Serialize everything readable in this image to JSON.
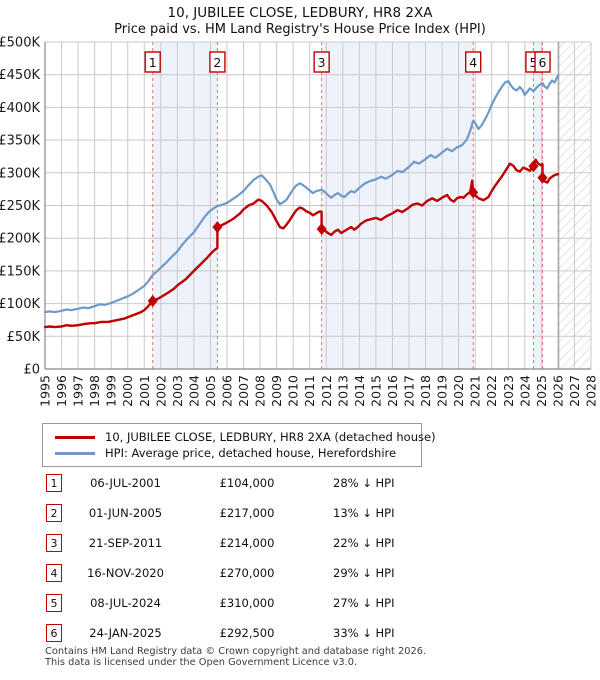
{
  "title": "10, JUBILEE CLOSE, LEDBURY, HR8 2XA",
  "subtitle": "Price paid vs. HM Land Registry's House Price Index (HPI)",
  "colors": {
    "price_line": "#c00000",
    "hpi_line": "#6e99c9",
    "sale_dashed_line": "#ee6f6f",
    "band_fill": "#eef2fa",
    "grid": "#c9c9c9",
    "axis": "#888888",
    "hatch": "#c9c9c9",
    "marker_box_border": "#c00000",
    "text": "#1a1a1a"
  },
  "chart_data": {
    "type": "line",
    "title": "10, JUBILEE CLOSE, LEDBURY, HR8 2XA — Price paid vs. HPI",
    "x_range": [
      1995,
      2028
    ],
    "y_range_pounds": [
      0,
      500000
    ],
    "x_ticks": [
      1995,
      1996,
      1997,
      1998,
      1999,
      2000,
      2001,
      2002,
      2003,
      2004,
      2005,
      2006,
      2007,
      2008,
      2009,
      2010,
      2011,
      2012,
      2013,
      2014,
      2015,
      2016,
      2017,
      2018,
      2019,
      2020,
      2021,
      2022,
      2023,
      2024,
      2025,
      2026,
      2027,
      2028
    ],
    "y_ticks_k": [
      0,
      50,
      100,
      150,
      200,
      250,
      300,
      350,
      400,
      450,
      500
    ],
    "y_tick_labels": [
      "£0",
      "£50K",
      "£100K",
      "£150K",
      "£200K",
      "£250K",
      "£300K",
      "£350K",
      "£400K",
      "£450K",
      "£500K"
    ],
    "grid": true,
    "legend_position": "below",
    "future_start": 2026.05,
    "bands": [
      [
        2001.51,
        2005.42
      ],
      [
        2011.72,
        2020.88
      ],
      [
        2024.52,
        2025.07
      ]
    ],
    "sales_markers": [
      {
        "n": "1",
        "x": 2001.51,
        "y_k": 104
      },
      {
        "n": "2",
        "x": 2005.42,
        "y_k": 217
      },
      {
        "n": "3",
        "x": 2011.72,
        "y_k": 214
      },
      {
        "n": "4",
        "x": 2020.88,
        "y_k": 270
      },
      {
        "n": "5",
        "x": 2024.52,
        "y_k": 310
      },
      {
        "n": "6",
        "x": 2025.07,
        "y_k": 292.5
      }
    ],
    "series": [
      {
        "name": "hpi",
        "label": "HPI: Average price, detached house, Herefordshire",
        "color": "#6e99c9",
        "width": 2.2,
        "points": [
          [
            1995,
            87
          ],
          [
            1995.3,
            88
          ],
          [
            1995.6,
            87
          ],
          [
            1996,
            89
          ],
          [
            1996.3,
            91
          ],
          [
            1996.6,
            90
          ],
          [
            1997,
            92
          ],
          [
            1997.3,
            94
          ],
          [
            1997.6,
            93
          ],
          [
            1998,
            96
          ],
          [
            1998.3,
            99
          ],
          [
            1998.6,
            98
          ],
          [
            1999,
            101
          ],
          [
            1999.3,
            104
          ],
          [
            1999.6,
            107
          ],
          [
            2000,
            111
          ],
          [
            2000.3,
            115
          ],
          [
            2000.6,
            120
          ],
          [
            2001,
            127
          ],
          [
            2001.3,
            136
          ],
          [
            2001.51,
            144
          ],
          [
            2001.8,
            150
          ],
          [
            2002,
            155
          ],
          [
            2002.3,
            162
          ],
          [
            2002.6,
            170
          ],
          [
            2003,
            180
          ],
          [
            2003.3,
            190
          ],
          [
            2003.6,
            199
          ],
          [
            2004,
            209
          ],
          [
            2004.3,
            220
          ],
          [
            2004.6,
            231
          ],
          [
            2004.9,
            240
          ],
          [
            2005.2,
            246
          ],
          [
            2005.42,
            249
          ],
          [
            2005.7,
            251
          ],
          [
            2006,
            254
          ],
          [
            2006.3,
            259
          ],
          [
            2006.6,
            264
          ],
          [
            2007,
            272
          ],
          [
            2007.3,
            281
          ],
          [
            2007.6,
            289
          ],
          [
            2007.9,
            294
          ],
          [
            2008.1,
            296
          ],
          [
            2008.3,
            291
          ],
          [
            2008.6,
            282
          ],
          [
            2008.8,
            271
          ],
          [
            2009,
            259
          ],
          [
            2009.2,
            252
          ],
          [
            2009.4,
            255
          ],
          [
            2009.6,
            259
          ],
          [
            2009.8,
            267
          ],
          [
            2010,
            275
          ],
          [
            2010.2,
            281
          ],
          [
            2010.4,
            284
          ],
          [
            2010.6,
            281
          ],
          [
            2010.8,
            277
          ],
          [
            2011,
            273
          ],
          [
            2011.2,
            269
          ],
          [
            2011.4,
            272
          ],
          [
            2011.72,
            274
          ],
          [
            2011.9,
            271
          ],
          [
            2012.1,
            266
          ],
          [
            2012.3,
            262
          ],
          [
            2012.5,
            266
          ],
          [
            2012.7,
            269
          ],
          [
            2012.9,
            265
          ],
          [
            2013.1,
            263
          ],
          [
            2013.3,
            268
          ],
          [
            2013.5,
            272
          ],
          [
            2013.7,
            270
          ],
          [
            2014,
            277
          ],
          [
            2014.3,
            283
          ],
          [
            2014.6,
            287
          ],
          [
            2015,
            290
          ],
          [
            2015.3,
            294
          ],
          [
            2015.6,
            291
          ],
          [
            2016,
            297
          ],
          [
            2016.3,
            303
          ],
          [
            2016.6,
            301
          ],
          [
            2017,
            309
          ],
          [
            2017.3,
            317
          ],
          [
            2017.6,
            314
          ],
          [
            2018,
            321
          ],
          [
            2018.3,
            327
          ],
          [
            2018.6,
            323
          ],
          [
            2019,
            331
          ],
          [
            2019.3,
            337
          ],
          [
            2019.6,
            333
          ],
          [
            2019.9,
            339
          ],
          [
            2020.2,
            342
          ],
          [
            2020.5,
            351
          ],
          [
            2020.7,
            364
          ],
          [
            2020.88,
            380
          ],
          [
            2021.05,
            374
          ],
          [
            2021.2,
            367
          ],
          [
            2021.4,
            373
          ],
          [
            2021.6,
            382
          ],
          [
            2021.8,
            392
          ],
          [
            2022,
            404
          ],
          [
            2022.2,
            414
          ],
          [
            2022.4,
            423
          ],
          [
            2022.6,
            431
          ],
          [
            2022.8,
            438
          ],
          [
            2023,
            440
          ],
          [
            2023.15,
            434
          ],
          [
            2023.3,
            429
          ],
          [
            2023.5,
            426
          ],
          [
            2023.7,
            431
          ],
          [
            2023.85,
            427
          ],
          [
            2024,
            419
          ],
          [
            2024.15,
            424
          ],
          [
            2024.3,
            429
          ],
          [
            2024.52,
            425
          ],
          [
            2024.7,
            430
          ],
          [
            2024.85,
            434
          ],
          [
            2025.07,
            437
          ],
          [
            2025.2,
            432
          ],
          [
            2025.35,
            429
          ],
          [
            2025.5,
            436
          ],
          [
            2025.65,
            441
          ],
          [
            2025.8,
            438
          ],
          [
            2025.95,
            446
          ],
          [
            2026.02,
            449
          ]
        ]
      },
      {
        "name": "price-paid",
        "label": "10, JUBILEE CLOSE, LEDBURY, HR8 2XA (detached house)",
        "color": "#c00000",
        "width": 2.4,
        "points": [
          [
            1995,
            64
          ],
          [
            1995.3,
            65
          ],
          [
            1995.6,
            64
          ],
          [
            1996,
            65
          ],
          [
            1996.3,
            67
          ],
          [
            1996.6,
            66
          ],
          [
            1997,
            67
          ],
          [
            1997.4,
            69
          ],
          [
            1997.8,
            70
          ],
          [
            1998,
            70
          ],
          [
            1998.4,
            72
          ],
          [
            1998.8,
            72
          ],
          [
            1999,
            73
          ],
          [
            1999.4,
            75
          ],
          [
            1999.8,
            77
          ],
          [
            2000,
            79
          ],
          [
            2000.4,
            83
          ],
          [
            2000.8,
            87
          ],
          [
            2001,
            90
          ],
          [
            2001.2,
            95
          ],
          [
            2001.51,
            104
          ],
          [
            2001.8,
            107
          ],
          [
            2002,
            110
          ],
          [
            2002.4,
            116
          ],
          [
            2002.8,
            123
          ],
          [
            2003,
            128
          ],
          [
            2003.5,
            137
          ],
          [
            2004,
            150
          ],
          [
            2004.4,
            160
          ],
          [
            2004.8,
            170
          ],
          [
            2005,
            176
          ],
          [
            2005.2,
            181
          ],
          [
            2005.42,
            185
          ],
          [
            2005.42,
            217
          ],
          [
            2005.6,
            219
          ],
          [
            2006,
            224
          ],
          [
            2006.4,
            230
          ],
          [
            2006.8,
            238
          ],
          [
            2007,
            244
          ],
          [
            2007.3,
            250
          ],
          [
            2007.6,
            253
          ],
          [
            2007.9,
            259
          ],
          [
            2008.1,
            257
          ],
          [
            2008.4,
            250
          ],
          [
            2008.7,
            240
          ],
          [
            2009,
            226
          ],
          [
            2009.2,
            217
          ],
          [
            2009.4,
            215
          ],
          [
            2009.6,
            221
          ],
          [
            2009.8,
            228
          ],
          [
            2010,
            236
          ],
          [
            2010.2,
            243
          ],
          [
            2010.4,
            247
          ],
          [
            2010.6,
            245
          ],
          [
            2010.8,
            241
          ],
          [
            2011,
            239
          ],
          [
            2011.2,
            235
          ],
          [
            2011.4,
            238
          ],
          [
            2011.6,
            241
          ],
          [
            2011.72,
            240
          ],
          [
            2011.72,
            214
          ],
          [
            2011.9,
            212
          ],
          [
            2012.1,
            208
          ],
          [
            2012.3,
            205
          ],
          [
            2012.5,
            210
          ],
          [
            2012.7,
            213
          ],
          [
            2012.9,
            208
          ],
          [
            2013.1,
            211
          ],
          [
            2013.3,
            214
          ],
          [
            2013.5,
            217
          ],
          [
            2013.7,
            213
          ],
          [
            2013.9,
            217
          ],
          [
            2014.1,
            222
          ],
          [
            2014.4,
            227
          ],
          [
            2014.7,
            229
          ],
          [
            2015,
            231
          ],
          [
            2015.3,
            228
          ],
          [
            2015.6,
            233
          ],
          [
            2016,
            238
          ],
          [
            2016.3,
            243
          ],
          [
            2016.6,
            240
          ],
          [
            2016.9,
            245
          ],
          [
            2017.2,
            251
          ],
          [
            2017.5,
            253
          ],
          [
            2017.8,
            250
          ],
          [
            2018.1,
            257
          ],
          [
            2018.4,
            261
          ],
          [
            2018.7,
            257
          ],
          [
            2019,
            262
          ],
          [
            2019.3,
            266
          ],
          [
            2019.5,
            259
          ],
          [
            2019.7,
            256
          ],
          [
            2019.9,
            261
          ],
          [
            2020.1,
            263
          ],
          [
            2020.3,
            262
          ],
          [
            2020.5,
            267
          ],
          [
            2020.7,
            271
          ],
          [
            2020.82,
            288
          ],
          [
            2020.88,
            270
          ],
          [
            2021,
            266
          ],
          [
            2021.2,
            261
          ],
          [
            2021.5,
            258
          ],
          [
            2021.8,
            263
          ],
          [
            2022,
            272
          ],
          [
            2022.2,
            280
          ],
          [
            2022.4,
            287
          ],
          [
            2022.6,
            294
          ],
          [
            2022.8,
            302
          ],
          [
            2023,
            310
          ],
          [
            2023.1,
            314
          ],
          [
            2023.3,
            311
          ],
          [
            2023.5,
            304
          ],
          [
            2023.7,
            302
          ],
          [
            2023.9,
            308
          ],
          [
            2024.1,
            306
          ],
          [
            2024.3,
            303
          ],
          [
            2024.52,
            310
          ],
          [
            2024.65,
            320
          ],
          [
            2024.8,
            314
          ],
          [
            2024.95,
            312
          ],
          [
            2025.07,
            313
          ],
          [
            2025.07,
            292.5
          ],
          [
            2025.2,
            287
          ],
          [
            2025.35,
            285
          ],
          [
            2025.5,
            291
          ],
          [
            2025.7,
            295
          ],
          [
            2025.85,
            297
          ],
          [
            2026.02,
            298
          ]
        ]
      }
    ]
  },
  "legend": {
    "items": [
      {
        "label": "10, JUBILEE CLOSE, LEDBURY, HR8 2XA (detached house)",
        "color": "#c00000"
      },
      {
        "label": "HPI: Average price, detached house, Herefordshire",
        "color": "#6e99c9"
      }
    ]
  },
  "table": {
    "rows": [
      {
        "num": "1",
        "date": "06-JUL-2001",
        "price": "£104,000",
        "delta": "28% ↓ HPI"
      },
      {
        "num": "2",
        "date": "01-JUN-2005",
        "price": "£217,000",
        "delta": "13% ↓ HPI"
      },
      {
        "num": "3",
        "date": "21-SEP-2011",
        "price": "£214,000",
        "delta": "22% ↓ HPI"
      },
      {
        "num": "4",
        "date": "16-NOV-2020",
        "price": "£270,000",
        "delta": "29% ↓ HPI"
      },
      {
        "num": "5",
        "date": "08-JUL-2024",
        "price": "£310,000",
        "delta": "27% ↓ HPI"
      },
      {
        "num": "6",
        "date": "24-JAN-2025",
        "price": "£292,500",
        "delta": "33% ↓ HPI"
      }
    ]
  },
  "footer": {
    "line1": "Contains HM Land Registry data © Crown copyright and database right 2026.",
    "line2": "This data is licensed under the Open Government Licence v3.0."
  }
}
